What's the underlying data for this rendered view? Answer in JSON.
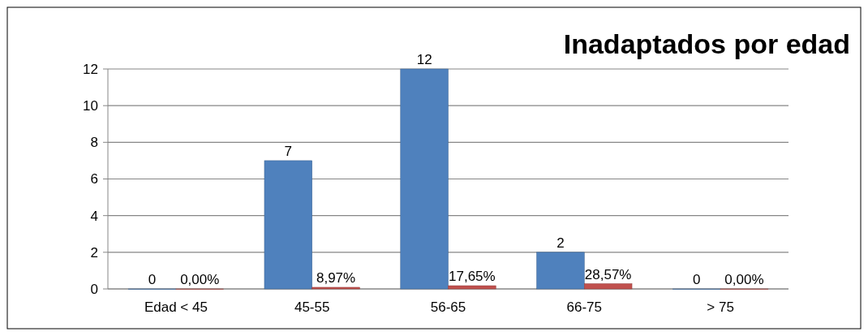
{
  "chart_data": {
    "type": "bar",
    "title": "Inadaptados por edad",
    "categories": [
      "Edad < 45",
      "45-55",
      "56-65",
      "66-75",
      "> 75"
    ],
    "series": [
      {
        "color": "#4f81bd",
        "values": [
          0,
          7,
          12,
          2,
          0
        ],
        "value_labels": [
          "0",
          "7",
          "12",
          "2",
          "0"
        ]
      },
      {
        "color": "#c0504d",
        "values": [
          0,
          0.0897,
          0.1765,
          0.2857,
          0
        ],
        "value_labels": [
          "0,00%",
          "8,97%",
          "17,65%",
          "28,57%",
          "0,00%"
        ]
      }
    ],
    "ylim": [
      0,
      12
    ],
    "yticks": [
      0,
      2,
      4,
      6,
      8,
      10,
      12
    ],
    "grid": "y"
  }
}
